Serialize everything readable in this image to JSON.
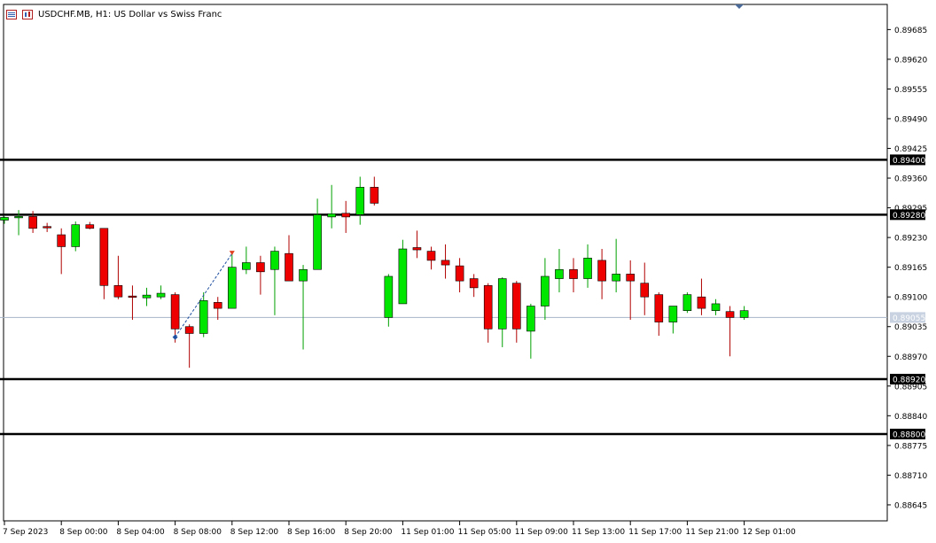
{
  "header": {
    "title": "USDCHF.MB, H1:  US Dollar vs Swiss Franc",
    "icons": [
      "window-menu-icon",
      "chart-properties-icon"
    ]
  },
  "colors": {
    "bull": "#00e600",
    "bear": "#ee0000",
    "wick_bull": "#00a000",
    "wick_bear": "#b00000",
    "level_line": "#000000",
    "current_price_line": "#a6b4c8",
    "axis_text": "#000000",
    "bid_label_bg": "#c8d2e0",
    "buy_marker": "#1f4fa0",
    "sell_marker": "#e04020"
  },
  "chart_data": {
    "type": "candlestick",
    "title": "USDCHF.MB, H1:  US Dollar vs Swiss Franc",
    "ylim": [
      0.8861,
      0.8974
    ],
    "y_ticks": [
      "0.89685",
      "0.89620",
      "0.89555",
      "0.89490",
      "0.89425",
      "0.89360",
      "0.89295",
      "0.89230",
      "0.89165",
      "0.89100",
      "0.89035",
      "0.88970",
      "0.88905",
      "0.88840",
      "0.88775",
      "0.88710",
      "0.88645"
    ],
    "x_labels": [
      {
        "label": "7 Sep 2023",
        "index": 0
      },
      {
        "label": "8 Sep 00:00",
        "index": 4
      },
      {
        "label": "8 Sep 04:00",
        "index": 8
      },
      {
        "label": "8 Sep 08:00",
        "index": 12
      },
      {
        "label": "8 Sep 12:00",
        "index": 16
      },
      {
        "label": "8 Sep 16:00",
        "index": 20
      },
      {
        "label": "8 Sep 20:00",
        "index": 24
      },
      {
        "label": "11 Sep 01:00",
        "index": 28
      },
      {
        "label": "11 Sep 05:00",
        "index": 32
      },
      {
        "label": "11 Sep 09:00",
        "index": 36
      },
      {
        "label": "11 Sep 13:00",
        "index": 40
      },
      {
        "label": "11 Sep 17:00",
        "index": 44
      },
      {
        "label": "11 Sep 21:00",
        "index": 48
      },
      {
        "label": "12 Sep 01:00",
        "index": 52
      }
    ],
    "candles": [
      {
        "o": 0.89268,
        "h": 0.89276,
        "l": 0.8926,
        "c": 0.89274
      },
      {
        "o": 0.89276,
        "h": 0.8929,
        "l": 0.89235,
        "c": 0.89276
      },
      {
        "o": 0.89276,
        "h": 0.89288,
        "l": 0.8924,
        "c": 0.8925
      },
      {
        "o": 0.89254,
        "h": 0.89262,
        "l": 0.89242,
        "c": 0.89252
      },
      {
        "o": 0.89236,
        "h": 0.8925,
        "l": 0.8915,
        "c": 0.8921
      },
      {
        "o": 0.8921,
        "h": 0.89265,
        "l": 0.892,
        "c": 0.89258
      },
      {
        "o": 0.89258,
        "h": 0.89264,
        "l": 0.89248,
        "c": 0.8925
      },
      {
        "o": 0.8925,
        "h": 0.8925,
        "l": 0.89095,
        "c": 0.89125
      },
      {
        "o": 0.89125,
        "h": 0.8919,
        "l": 0.89095,
        "c": 0.891
      },
      {
        "o": 0.89102,
        "h": 0.89125,
        "l": 0.8905,
        "c": 0.891
      },
      {
        "o": 0.89098,
        "h": 0.8912,
        "l": 0.8908,
        "c": 0.89104
      },
      {
        "o": 0.891,
        "h": 0.89125,
        "l": 0.89095,
        "c": 0.89108
      },
      {
        "o": 0.89105,
        "h": 0.8911,
        "l": 0.89,
        "c": 0.8903
      },
      {
        "o": 0.89035,
        "h": 0.8904,
        "l": 0.88945,
        "c": 0.8902
      },
      {
        "o": 0.8902,
        "h": 0.8911,
        "l": 0.89012,
        "c": 0.89092
      },
      {
        "o": 0.89088,
        "h": 0.891,
        "l": 0.8905,
        "c": 0.89075
      },
      {
        "o": 0.89075,
        "h": 0.892,
        "l": 0.89075,
        "c": 0.89165
      },
      {
        "o": 0.8916,
        "h": 0.8921,
        "l": 0.8915,
        "c": 0.89175
      },
      {
        "o": 0.89175,
        "h": 0.8919,
        "l": 0.89105,
        "c": 0.89155
      },
      {
        "o": 0.8916,
        "h": 0.8921,
        "l": 0.8906,
        "c": 0.892
      },
      {
        "o": 0.89195,
        "h": 0.89235,
        "l": 0.8914,
        "c": 0.89135
      },
      {
        "o": 0.89135,
        "h": 0.8917,
        "l": 0.88985,
        "c": 0.8916
      },
      {
        "o": 0.8916,
        "h": 0.89315,
        "l": 0.8916,
        "c": 0.8928
      },
      {
        "o": 0.89275,
        "h": 0.89345,
        "l": 0.8925,
        "c": 0.89282
      },
      {
        "o": 0.89283,
        "h": 0.8931,
        "l": 0.8924,
        "c": 0.89275
      },
      {
        "o": 0.8928,
        "h": 0.89363,
        "l": 0.89258,
        "c": 0.8934
      },
      {
        "o": 0.8934,
        "h": 0.89363,
        "l": 0.893,
        "c": 0.89305
      },
      {
        "o": 0.89055,
        "h": 0.8915,
        "l": 0.89035,
        "c": 0.89145
      },
      {
        "o": 0.89085,
        "h": 0.89225,
        "l": 0.89085,
        "c": 0.89205
      },
      {
        "o": 0.89208,
        "h": 0.89245,
        "l": 0.89185,
        "c": 0.89203
      },
      {
        "o": 0.892,
        "h": 0.8921,
        "l": 0.8916,
        "c": 0.8918
      },
      {
        "o": 0.8918,
        "h": 0.89215,
        "l": 0.8914,
        "c": 0.8917
      },
      {
        "o": 0.89168,
        "h": 0.89185,
        "l": 0.8911,
        "c": 0.89135
      },
      {
        "o": 0.8914,
        "h": 0.8915,
        "l": 0.891,
        "c": 0.8912
      },
      {
        "o": 0.89125,
        "h": 0.8913,
        "l": 0.89,
        "c": 0.8903
      },
      {
        "o": 0.8903,
        "h": 0.89143,
        "l": 0.8899,
        "c": 0.8914
      },
      {
        "o": 0.8913,
        "h": 0.89135,
        "l": 0.89,
        "c": 0.8903
      },
      {
        "o": 0.89025,
        "h": 0.89085,
        "l": 0.88965,
        "c": 0.8908
      },
      {
        "o": 0.8908,
        "h": 0.89185,
        "l": 0.8905,
        "c": 0.89145
      },
      {
        "o": 0.8914,
        "h": 0.89205,
        "l": 0.8911,
        "c": 0.8916
      },
      {
        "o": 0.8916,
        "h": 0.89185,
        "l": 0.8911,
        "c": 0.8914
      },
      {
        "o": 0.8914,
        "h": 0.89215,
        "l": 0.8912,
        "c": 0.89185
      },
      {
        "o": 0.8918,
        "h": 0.89205,
        "l": 0.89095,
        "c": 0.89135
      },
      {
        "o": 0.89135,
        "h": 0.89227,
        "l": 0.8911,
        "c": 0.8915
      },
      {
        "o": 0.8915,
        "h": 0.8918,
        "l": 0.8905,
        "c": 0.89135
      },
      {
        "o": 0.8913,
        "h": 0.89175,
        "l": 0.8906,
        "c": 0.891
      },
      {
        "o": 0.89105,
        "h": 0.8911,
        "l": 0.89015,
        "c": 0.89045
      },
      {
        "o": 0.89045,
        "h": 0.89075,
        "l": 0.8902,
        "c": 0.8908
      },
      {
        "o": 0.8907,
        "h": 0.8911,
        "l": 0.89065,
        "c": 0.89105
      },
      {
        "o": 0.891,
        "h": 0.8914,
        "l": 0.8906,
        "c": 0.89075
      },
      {
        "o": 0.8907,
        "h": 0.89095,
        "l": 0.8906,
        "c": 0.89085
      },
      {
        "o": 0.89068,
        "h": 0.8908,
        "l": 0.8897,
        "c": 0.89055
      },
      {
        "o": 0.89055,
        "h": 0.8908,
        "l": 0.8905,
        "c": 0.8907
      }
    ],
    "horizontal_levels": [
      {
        "price": 0.894,
        "label": "0.89400"
      },
      {
        "price": 0.8928,
        "label": "0.89280"
      },
      {
        "price": 0.8892,
        "label": "0.88920"
      },
      {
        "price": 0.888,
        "label": "0.88800"
      }
    ],
    "current_price": {
      "price": 0.89055,
      "label": "0.89055"
    },
    "trade_line": {
      "from": {
        "index": 12,
        "price": 0.89012
      },
      "to": {
        "index": 16,
        "price": 0.89195
      }
    }
  }
}
